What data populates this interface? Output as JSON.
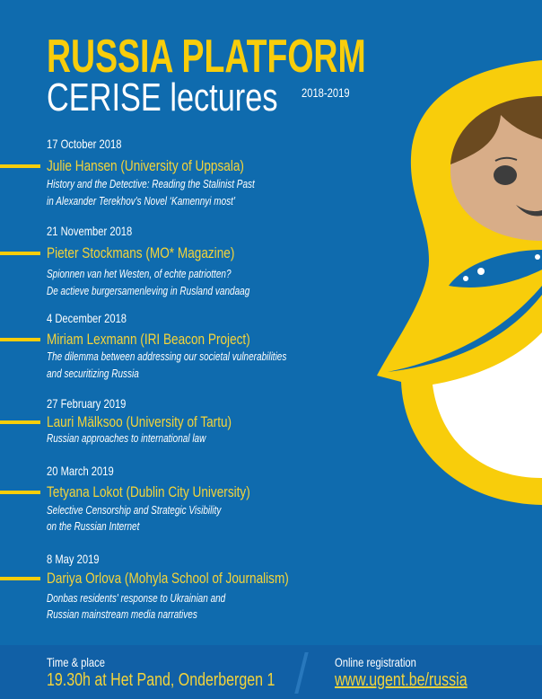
{
  "header": {
    "title": "RUSSIA PLATFORM",
    "subtitle": "CERISE lectures",
    "years": "2018-2019"
  },
  "colors": {
    "background": "#0f6bae",
    "accent": "#f8cd0b",
    "footer": "#1160a6"
  },
  "lectures": [
    {
      "date": "17 October 2018",
      "speaker": "Julie Hansen (University of Uppsala)",
      "title_lines": [
        "History and the Detective: Reading the Stalinist Past",
        "in Alexander Terekhov's Novel ‘Kamennyi most’"
      ]
    },
    {
      "date": "21 November 2018",
      "speaker": "Pieter Stockmans (MO* Magazine)",
      "title_lines": [
        "Spionnen van het Westen, of echte patriotten?",
        "De actieve burgersamenleving in Rusland vandaag"
      ]
    },
    {
      "date": "4 December 2018",
      "speaker": "Miriam Lexmann (IRI Beacon Project)",
      "title_lines": [
        "The dilemma between addressing our societal vulnerabilities",
        "and securitizing Russia"
      ]
    },
    {
      "date": "27 February 2019",
      "speaker": "Lauri Mälksoo (University of Tartu)",
      "title_lines": [
        "Russian approaches to international law"
      ]
    },
    {
      "date": "20 March 2019",
      "speaker": "Tetyana Lokot (Dublin City University)",
      "title_lines": [
        "Selective Censorship and Strategic Visibility",
        "on the Russian Internet"
      ]
    },
    {
      "date": "8 May 2019",
      "speaker": "Dariya Orlova (Mohyla School of Journalism)",
      "title_lines": [
        "Donbas residents' response to Ukrainian and",
        "Russian mainstream media narratives"
      ]
    }
  ],
  "footer": {
    "time_label": "Time & place",
    "time_value": "19.30h at Het Pand, Onderbergen 1",
    "registration_label": "Online registration",
    "registration_link": "www.ugent.be/russia"
  }
}
